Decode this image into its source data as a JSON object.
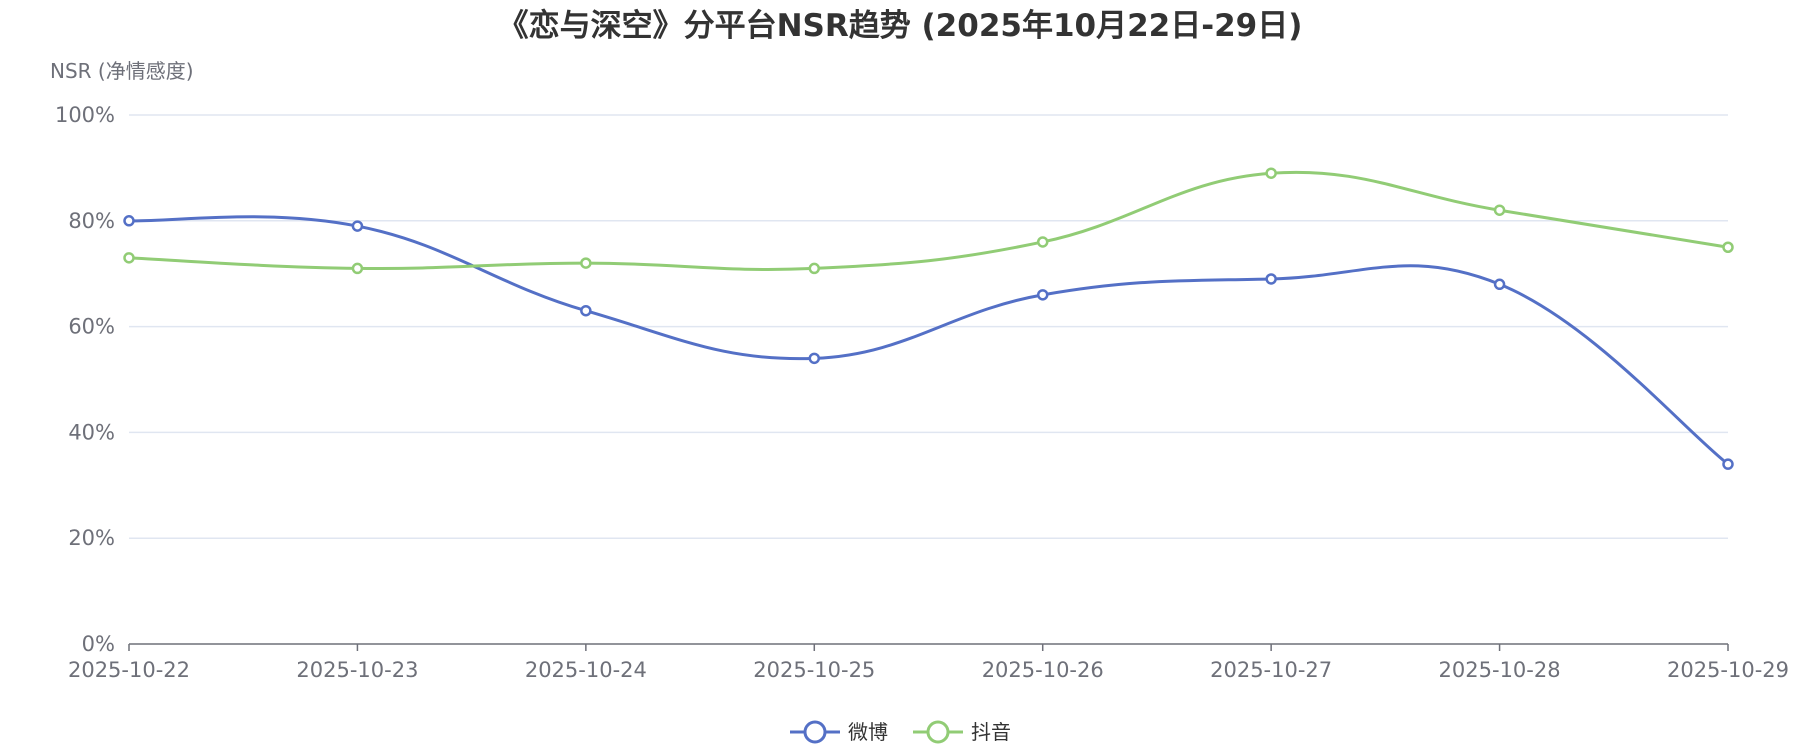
{
  "chart_data": {
    "type": "line",
    "title": "《恋与深空》分平台NSR趋势 (2025年10月22日-29日)",
    "ylabel": "NSR (净情感度)",
    "xlabel": "",
    "x": [
      "2025-10-22",
      "2025-10-23",
      "2025-10-24",
      "2025-10-25",
      "2025-10-26",
      "2025-10-27",
      "2025-10-28",
      "2025-10-29"
    ],
    "ylim": [
      0,
      100
    ],
    "y_ticks": [
      "0%",
      "20%",
      "40%",
      "60%",
      "80%",
      "100%"
    ],
    "grid": true,
    "smooth": true,
    "legend": "bottom-center",
    "series": [
      {
        "name": "微博",
        "color": "#5470c6",
        "values": [
          80,
          79,
          63,
          54,
          66,
          69,
          68,
          34
        ]
      },
      {
        "name": "抖音",
        "color": "#91cc75",
        "values": [
          73,
          71,
          72,
          71,
          76,
          89,
          82,
          75
        ]
      }
    ]
  }
}
